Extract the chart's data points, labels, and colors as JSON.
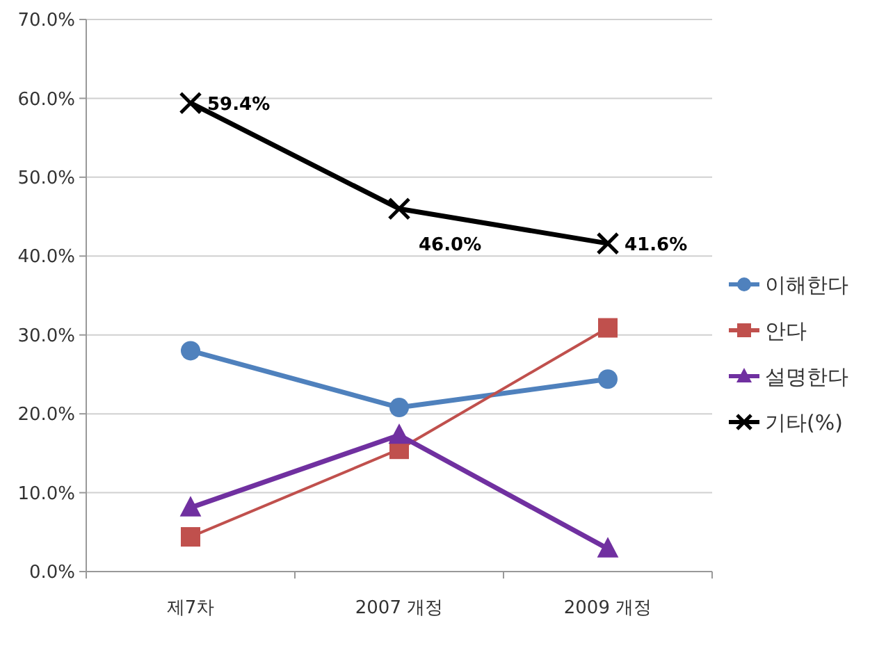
{
  "chart_data": {
    "type": "line",
    "categories": [
      "제7차",
      "2007 개정",
      "2009 개정"
    ],
    "series": [
      {
        "name": "이해한다",
        "color": "#4f81bd",
        "marker": "circle",
        "values": [
          28.0,
          20.8,
          24.4
        ]
      },
      {
        "name": "안다",
        "color": "#c0504d",
        "marker": "square",
        "values": [
          4.4,
          15.5,
          30.9
        ]
      },
      {
        "name": "설명한다",
        "color": "#7030a0",
        "marker": "triangle",
        "values": [
          8.1,
          17.3,
          2.9
        ]
      },
      {
        "name": "기타(%)",
        "color": "#000000",
        "marker": "cross",
        "values": [
          59.4,
          46.0,
          41.6
        ],
        "value_labels": [
          "59.4%",
          "46.0%",
          "41.6%"
        ]
      }
    ],
    "ylim": [
      0,
      70
    ],
    "yticks": [
      {
        "value": 0,
        "label": "0.0%"
      },
      {
        "value": 10,
        "label": "10.0%"
      },
      {
        "value": 20,
        "label": "20.0%"
      },
      {
        "value": 30,
        "label": "30.0%"
      },
      {
        "value": 40,
        "label": "40.0%"
      },
      {
        "value": 50,
        "label": "50.0%"
      },
      {
        "value": 60,
        "label": "60.0%"
      },
      {
        "value": 70,
        "label": "70.0%"
      }
    ],
    "grid": "y",
    "legend": "right",
    "line_style": "solid"
  }
}
